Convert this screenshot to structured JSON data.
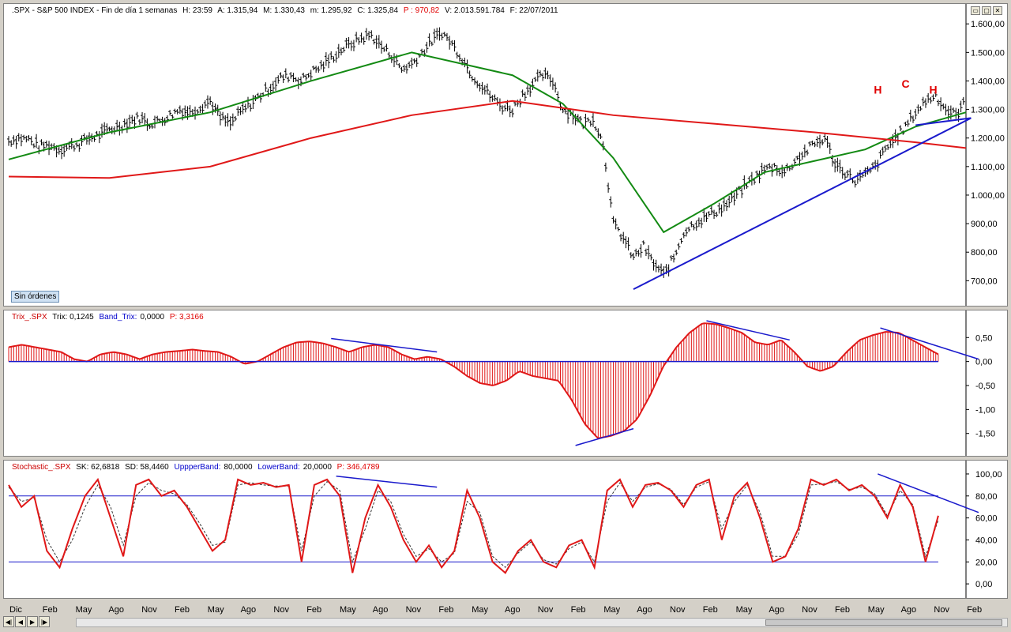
{
  "main_panel": {
    "header": {
      "symbol": ".SPX - S&P 500 INDEX - Fin de día 1 semanas",
      "high": "H: 23:59",
      "a": "A: 1.315,94",
      "m": "M: 1.330,43",
      "low": "m: 1.295,92",
      "close": "C: 1.325,84",
      "price": "P : 970,82",
      "volume": "V: 2.013.591.784",
      "date": "F: 22/07/2011"
    },
    "button_label": "Sin órdenes",
    "pattern_labels": [
      "H",
      "C",
      "H"
    ]
  },
  "trix_panel": {
    "header": {
      "name": "Trix_.SPX",
      "trix": "Trix: 0,1245",
      "band_name": "Band_Trix:",
      "band": "0,0000",
      "p": "P: 3,3166"
    }
  },
  "stoch_panel": {
    "header": {
      "name": "Stochastic_.SPX",
      "sk": "SK: 62,6818",
      "sd": "SD: 58,4460",
      "upper_name": "UppperBand:",
      "upper": "80,0000",
      "lower_name": "LowerBand:",
      "lower": "20,0000",
      "p": "P: 346,4789"
    }
  },
  "window_buttons": [
    "▭",
    "▢",
    "✕"
  ],
  "nav_buttons": [
    "◀|",
    "◀",
    "▶",
    "|▶"
  ],
  "x_axis_labels": [
    "Dic",
    "Feb",
    "May",
    "Ago",
    "Nov",
    "Feb",
    "May",
    "Ago",
    "Nov",
    "Feb",
    "May",
    "Ago",
    "Nov",
    "Feb",
    "May",
    "Ago",
    "Nov",
    "Feb",
    "May",
    "Ago",
    "Nov",
    "Feb",
    "May",
    "Ago",
    "Nov",
    "Feb",
    "May",
    "Ago",
    "Nov",
    "Feb"
  ],
  "chart_data": [
    {
      "type": "line",
      "title": ".SPX - S&P 500 INDEX",
      "x_range": [
        "2004-12",
        "2012-02"
      ],
      "ylim": [
        640,
        1620
      ],
      "y_ticks": [
        "700,00",
        "800,00",
        "900,00",
        "1.000,00",
        "1.100,00",
        "1.200,00",
        "1.300,00",
        "1.400,00",
        "1.500,00",
        "1.600,00"
      ],
      "y_tick_values": [
        700,
        800,
        900,
        1000,
        1100,
        1200,
        1300,
        1400,
        1500,
        1600
      ],
      "series": [
        {
          "values_x": [
            0,
            4,
            8,
            12,
            16,
            20,
            24,
            28,
            32,
            36,
            40,
            44,
            48,
            52,
            56,
            60,
            64,
            68,
            72,
            76,
            80,
            84,
            88,
            92,
            96,
            100,
            104,
            108,
            112,
            116,
            120,
            124,
            128,
            132,
            136,
            140,
            144,
            148,
            152,
            156,
            160,
            164,
            168,
            172,
            176,
            180,
            184,
            188,
            192,
            196,
            200,
            204,
            208,
            212,
            216,
            220,
            224,
            228,
            232,
            236,
            240,
            244,
            248,
            252,
            256,
            260,
            264,
            268,
            272,
            276,
            280,
            284,
            288,
            292,
            296,
            300,
            304,
            308,
            312,
            316,
            320,
            324,
            328,
            332,
            336,
            340,
            344,
            348,
            352,
            356,
            360,
            364,
            368,
            372,
            376,
            380
          ],
          "values": [
            1190,
            1200,
            1195,
            1170,
            1175,
            1160,
            1170,
            1180,
            1200,
            1210,
            1230,
            1240,
            1260,
            1270,
            1250,
            1260,
            1280,
            1300,
            1290,
            1310,
            1330,
            1270,
            1250,
            1290,
            1320,
            1350,
            1380,
            1410,
            1420,
            1400,
            1430,
            1450,
            1480,
            1510,
            1530,
            1550,
            1560,
            1520,
            1490,
            1440,
            1460,
            1500,
            1540,
            1570,
            1530,
            1480,
            1420,
            1380,
            1340,
            1310,
            1300,
            1350,
            1390,
            1420,
            1400,
            1300,
            1280,
            1250,
            1270,
            1180,
            900,
            850,
            780,
            820,
            760,
            720,
            780,
            870,
            900,
            920,
            940,
            960,
            990,
            1030,
            1060,
            1090,
            1100,
            1080,
            1120,
            1150,
            1180,
            1200,
            1110,
            1080,
            1050,
            1070,
            1100,
            1160,
            1200,
            1240,
            1290,
            1330,
            1350,
            1300,
            1280,
            1330
          ]
        },
        {
          "name": "MA verde",
          "values_x": [
            0,
            40,
            80,
            120,
            160,
            200,
            220,
            240,
            260,
            280,
            300,
            320,
            340,
            360,
            380
          ],
          "values": [
            1125,
            1220,
            1290,
            1400,
            1500,
            1420,
            1320,
            1130,
            870,
            970,
            1080,
            1120,
            1160,
            1240,
            1290
          ]
        },
        {
          "name": "MA roja",
          "values_x": [
            0,
            40,
            80,
            120,
            160,
            200,
            240,
            280,
            320,
            360,
            380
          ],
          "values": [
            1065,
            1060,
            1100,
            1200,
            1280,
            1330,
            1280,
            1250,
            1220,
            1185,
            1165
          ]
        }
      ],
      "trendlines": [
        {
          "from": [
            248,
            670
          ],
          "to": [
            382,
            1270
          ]
        },
        {
          "from": [
            360,
            1245
          ],
          "to": [
            382,
            1270
          ]
        }
      ]
    },
    {
      "type": "bar",
      "title": "Trix_.SPX",
      "ylim": [
        -1.9,
        0.9
      ],
      "y_ticks": [
        "-1,50",
        "-1,00",
        "-0,50",
        "0,00",
        "0,50"
      ],
      "y_tick_values": [
        -1.5,
        -1.0,
        -0.5,
        0.0,
        0.5
      ],
      "values": [
        0.3,
        0.35,
        0.3,
        0.25,
        0.2,
        0.05,
        0.0,
        0.15,
        0.2,
        0.15,
        0.05,
        0.15,
        0.2,
        0.22,
        0.25,
        0.22,
        0.2,
        0.1,
        -0.05,
        0.0,
        0.15,
        0.3,
        0.4,
        0.42,
        0.38,
        0.3,
        0.2,
        0.3,
        0.35,
        0.3,
        0.15,
        0.05,
        0.1,
        0.05,
        -0.1,
        -0.3,
        -0.45,
        -0.5,
        -0.4,
        -0.2,
        -0.3,
        -0.35,
        -0.4,
        -0.8,
        -1.3,
        -1.6,
        -1.55,
        -1.45,
        -1.2,
        -0.7,
        -0.1,
        0.3,
        0.6,
        0.8,
        0.78,
        0.7,
        0.6,
        0.4,
        0.35,
        0.45,
        0.2,
        -0.1,
        -0.2,
        -0.1,
        0.2,
        0.45,
        0.55,
        0.62,
        0.6,
        0.45,
        0.3,
        0.15
      ]
    },
    {
      "type": "line",
      "title": "Stochastic_.SPX",
      "ylim": [
        -10,
        105
      ],
      "y_ticks": [
        "0,00",
        "20,00",
        "40,00",
        "60,00",
        "80,00",
        "100,00"
      ],
      "y_tick_values": [
        0,
        20,
        40,
        60,
        80,
        100
      ],
      "bands": [
        80,
        20
      ],
      "series": [
        {
          "name": "SK",
          "values": [
            90,
            70,
            80,
            30,
            15,
            50,
            80,
            95,
            60,
            25,
            90,
            95,
            80,
            85,
            70,
            50,
            30,
            40,
            95,
            90,
            92,
            88,
            90,
            20,
            90,
            95,
            80,
            10,
            60,
            90,
            70,
            40,
            20,
            35,
            15,
            30,
            85,
            60,
            20,
            10,
            30,
            40,
            20,
            15,
            35,
            40,
            15,
            85,
            95,
            70,
            90,
            92,
            85,
            70,
            90,
            95,
            40,
            80,
            92,
            60,
            20,
            25,
            50,
            95,
            90,
            95,
            85,
            90,
            80,
            60,
            90,
            70,
            20,
            62
          ]
        },
        {
          "name": "SD",
          "values": [
            88,
            75,
            78,
            40,
            20,
            40,
            70,
            90,
            70,
            35,
            80,
            92,
            85,
            82,
            72,
            55,
            35,
            38,
            90,
            92,
            90,
            89,
            89,
            30,
            80,
            93,
            85,
            20,
            50,
            85,
            75,
            45,
            25,
            32,
            20,
            28,
            75,
            65,
            25,
            15,
            28,
            38,
            22,
            18,
            32,
            38,
            20,
            75,
            92,
            75,
            88,
            91,
            86,
            72,
            88,
            93,
            50,
            75,
            90,
            65,
            25,
            25,
            45,
            90,
            91,
            93,
            86,
            88,
            82,
            62,
            85,
            72,
            25,
            58
          ]
        }
      ],
      "trendlines": [
        {
          "from": [
            20,
            98
          ],
          "to": [
            26,
            88
          ]
        },
        {
          "from": [
            66,
            100
          ],
          "to": [
            73,
            65
          ]
        }
      ]
    }
  ]
}
